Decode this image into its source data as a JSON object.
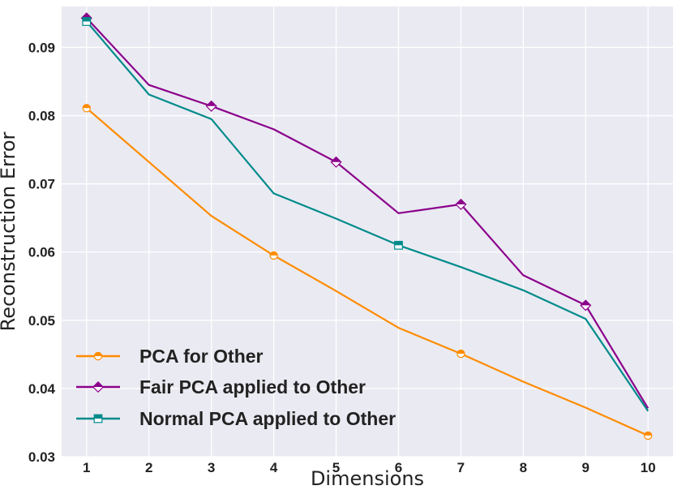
{
  "chart_data": {
    "type": "line",
    "title": "",
    "xlabel": "Dimensions",
    "ylabel": "Reconstruction Error",
    "x": [
      1,
      2,
      3,
      4,
      5,
      6,
      7,
      8,
      9,
      10
    ],
    "xlim": [
      0.6,
      10.4
    ],
    "ylim": [
      0.03,
      0.096
    ],
    "x_ticks": [
      "1",
      "2",
      "3",
      "4",
      "5",
      "6",
      "7",
      "8",
      "9",
      "10"
    ],
    "y_ticks": [
      "0.03",
      "0.04",
      "0.05",
      "0.06",
      "0.07",
      "0.08",
      "0.09"
    ],
    "y_tick_values": [
      0.03,
      0.04,
      0.05,
      0.06,
      0.07,
      0.08,
      0.09
    ],
    "grid": true,
    "legend_position": "bottom-left",
    "series": [
      {
        "name": "PCA for Other",
        "color": "#ff8c00",
        "marker": "circle",
        "values": [
          0.0811,
          0.0732,
          0.0653,
          0.0595,
          0.0543,
          0.0489,
          0.0451,
          0.041,
          0.0372,
          0.0331
        ],
        "marker_indices": [
          0,
          3,
          6,
          9
        ]
      },
      {
        "name": "Fair PCA applied to Other",
        "color": "#8b008b",
        "marker": "diamond",
        "values": [
          0.0943,
          0.0845,
          0.0814,
          0.078,
          0.0732,
          0.0657,
          0.067,
          0.0566,
          0.0522,
          0.0371
        ],
        "marker_indices": [
          0,
          2,
          4,
          6,
          8
        ]
      },
      {
        "name": "Normal PCA applied to Other",
        "color": "#008b8b",
        "marker": "square",
        "values": [
          0.0938,
          0.0831,
          0.0795,
          0.0686,
          0.0649,
          0.061,
          0.0578,
          0.0544,
          0.0502,
          0.0367
        ],
        "marker_indices": [
          0,
          5
        ]
      }
    ]
  }
}
